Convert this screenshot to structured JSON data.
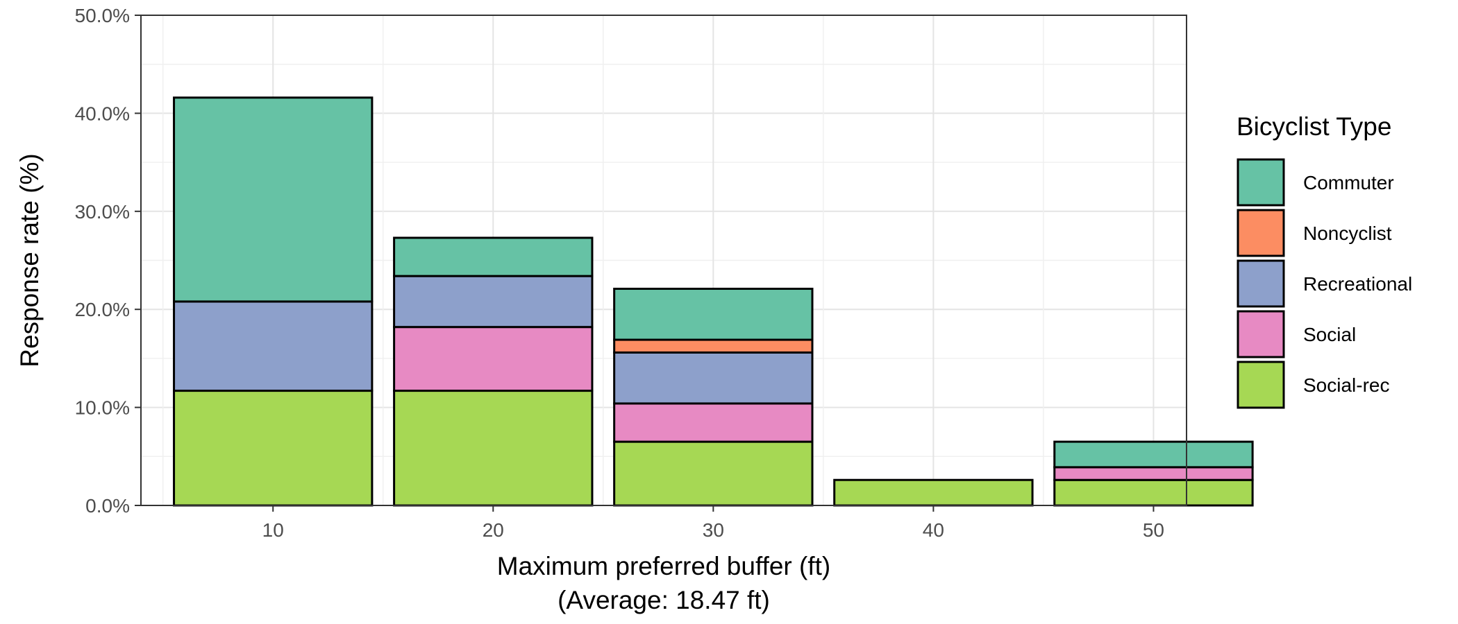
{
  "chart_data": {
    "type": "bar",
    "stacked": true,
    "x": [
      10,
      20,
      30,
      40,
      50
    ],
    "xlim": [
      4,
      51.5
    ],
    "ylim": [
      0,
      50
    ],
    "x_ticks": [
      "10",
      "20",
      "30",
      "40",
      "50"
    ],
    "y_ticks": [
      "0.0%",
      "10.0%",
      "20.0%",
      "30.0%",
      "40.0%",
      "50.0%"
    ],
    "xlabel": "Maximum preferred buffer (ft)",
    "xlabel_sub": "(Average: 18.47 ft)",
    "ylabel": "Response rate (%)",
    "grid": true,
    "legend": {
      "title": "Bicyclist Type",
      "position": "right"
    },
    "series": [
      {
        "name": "Social-rec",
        "color": "#A6D854",
        "values": [
          11.7,
          11.7,
          6.5,
          2.6,
          2.6
        ]
      },
      {
        "name": "Social",
        "color": "#E78AC3",
        "values": [
          0.0,
          6.5,
          3.9,
          0.0,
          1.3
        ]
      },
      {
        "name": "Recreational",
        "color": "#8DA0CB",
        "values": [
          9.1,
          5.2,
          5.2,
          0.0,
          0.0
        ]
      },
      {
        "name": "Noncyclist",
        "color": "#FC8D62",
        "values": [
          0.0,
          0.0,
          1.3,
          0.0,
          0.0
        ]
      },
      {
        "name": "Commuter",
        "color": "#66C2A5",
        "values": [
          20.8,
          3.9,
          5.2,
          0.0,
          2.6
        ]
      }
    ],
    "legend_order": [
      "Commuter",
      "Noncyclist",
      "Recreational",
      "Social",
      "Social-rec"
    ]
  }
}
